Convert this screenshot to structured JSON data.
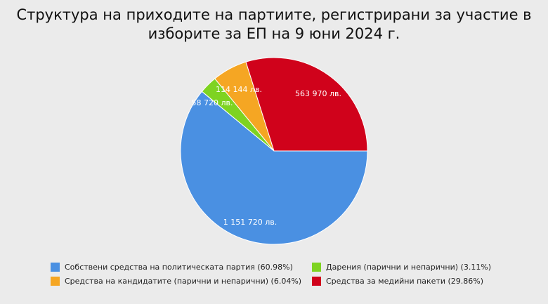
{
  "chart_data": {
    "type": "pie",
    "title_lines": [
      "Структура на приходите на партиите, регистрирани за участие в",
      "изборите за ЕП на 9 юни 2024 г."
    ],
    "slices": [
      {
        "legend": "Собствени средства на политическата партия (60.98%)",
        "value": 1151720,
        "percent": 60.98,
        "label": "1 151 720 лв.",
        "color": "#4a90e2"
      },
      {
        "legend": "Дарения (парични и непарични) (3.11%)",
        "value": 58720,
        "percent": 3.11,
        "label": "58 720 лв.",
        "color": "#7ed321"
      },
      {
        "legend": "Средства на кандидатите (парични и непарични) (6.04%)",
        "value": 114144,
        "percent": 6.04,
        "label": "114 144 лв.",
        "color": "#f5a623"
      },
      {
        "legend": "Средства за медийни пакети (29.86%)",
        "value": 563970,
        "percent": 29.86,
        "label": "563 970 лв.",
        "color": "#d0021b"
      }
    ],
    "legend_order": [
      0,
      1,
      2,
      3
    ],
    "legend_placement": "bottom"
  }
}
